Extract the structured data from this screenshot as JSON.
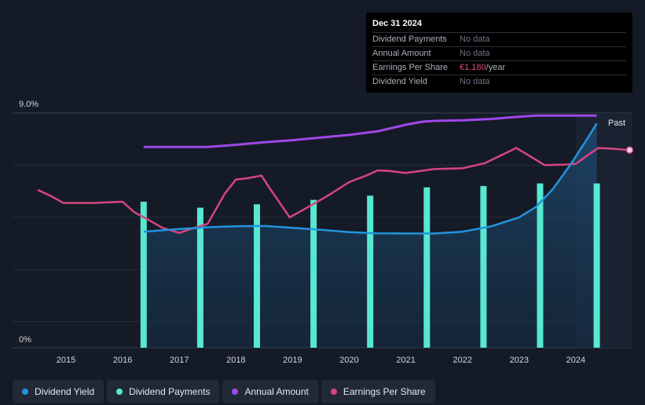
{
  "chart_data": {
    "type": "line",
    "ylabel_top": "9.0%",
    "ylabel_bottom": "0%",
    "ylim": [
      0,
      9.0
    ],
    "xlim": [
      2014.5,
      2025.0
    ],
    "x_ticks": [
      "2015",
      "2016",
      "2017",
      "2018",
      "2019",
      "2020",
      "2021",
      "2022",
      "2023",
      "2024"
    ],
    "past_label": "Past",
    "forecast_start": 2024.0,
    "series": [
      {
        "name": "Dividend Yield",
        "color": "#2394df",
        "points": [
          [
            2016.37,
            4.45
          ],
          [
            2017.0,
            4.55
          ],
          [
            2017.5,
            4.62
          ],
          [
            2018.0,
            4.66
          ],
          [
            2018.5,
            4.67
          ],
          [
            2019.0,
            4.6
          ],
          [
            2019.5,
            4.52
          ],
          [
            2020.0,
            4.43
          ],
          [
            2020.5,
            4.39
          ],
          [
            2021.0,
            4.38
          ],
          [
            2021.5,
            4.38
          ],
          [
            2022.0,
            4.45
          ],
          [
            2022.5,
            4.65
          ],
          [
            2023.0,
            5.0
          ],
          [
            2023.3,
            5.4
          ],
          [
            2023.6,
            6.1
          ],
          [
            2023.9,
            7.0
          ],
          [
            2024.2,
            8.0
          ],
          [
            2024.37,
            8.6
          ]
        ]
      },
      {
        "name": "Dividend Payments",
        "color": "#58e8d2",
        "type": "bar",
        "x": [
          2016.37,
          2017.37,
          2018.37,
          2019.37,
          2020.37,
          2021.37,
          2022.37,
          2023.37,
          2024.37
        ],
        "values": [
          5.6,
          5.37,
          5.5,
          5.67,
          5.83,
          6.15,
          6.2,
          6.3,
          6.3
        ]
      },
      {
        "name": "Annual Amount",
        "color": "#9f48e8",
        "points": [
          [
            2016.37,
            7.7
          ],
          [
            2017.0,
            7.7
          ],
          [
            2017.5,
            7.7
          ],
          [
            2018.0,
            7.78
          ],
          [
            2018.5,
            7.88
          ],
          [
            2019.0,
            7.96
          ],
          [
            2019.5,
            8.06
          ],
          [
            2020.0,
            8.16
          ],
          [
            2020.5,
            8.3
          ],
          [
            2021.0,
            8.55
          ],
          [
            2021.3,
            8.67
          ],
          [
            2021.5,
            8.7
          ],
          [
            2022.0,
            8.72
          ],
          [
            2022.5,
            8.77
          ],
          [
            2023.0,
            8.86
          ],
          [
            2023.3,
            8.9
          ],
          [
            2023.6,
            8.9
          ],
          [
            2024.37,
            8.9
          ]
        ]
      },
      {
        "name": "Earnings Per Share",
        "color": "#d64580",
        "points": [
          [
            2014.5,
            6.05
          ],
          [
            2014.75,
            5.8
          ],
          [
            2014.95,
            5.55
          ],
          [
            2015.5,
            5.55
          ],
          [
            2016.0,
            5.6
          ],
          [
            2016.2,
            5.2
          ],
          [
            2016.5,
            4.85
          ],
          [
            2016.7,
            4.6
          ],
          [
            2017.0,
            4.4
          ],
          [
            2017.2,
            4.55
          ],
          [
            2017.5,
            4.75
          ],
          [
            2017.8,
            5.9
          ],
          [
            2018.0,
            6.45
          ],
          [
            2018.2,
            6.5
          ],
          [
            2018.45,
            6.6
          ],
          [
            2018.6,
            6.1
          ],
          [
            2018.95,
            5.0
          ],
          [
            2019.2,
            5.3
          ],
          [
            2019.6,
            5.8
          ],
          [
            2020.0,
            6.35
          ],
          [
            2020.3,
            6.6
          ],
          [
            2020.5,
            6.8
          ],
          [
            2020.7,
            6.78
          ],
          [
            2021.0,
            6.7
          ],
          [
            2021.5,
            6.85
          ],
          [
            2022.0,
            6.88
          ],
          [
            2022.4,
            7.08
          ],
          [
            2022.7,
            7.4
          ],
          [
            2022.95,
            7.66
          ],
          [
            2023.15,
            7.4
          ],
          [
            2023.45,
            7.0
          ],
          [
            2023.8,
            7.02
          ],
          [
            2024.0,
            7.05
          ],
          [
            2024.2,
            7.37
          ],
          [
            2024.4,
            7.66
          ],
          [
            2024.65,
            7.63
          ],
          [
            2024.95,
            7.58
          ]
        ]
      }
    ]
  },
  "tooltip": {
    "date": "Dec 31 2024",
    "rows": [
      {
        "label": "Dividend Payments",
        "value": "No data"
      },
      {
        "label": "Annual Amount",
        "value": "No data"
      },
      {
        "label": "Earnings Per Share",
        "value": "€1.180",
        "unit": "/year"
      },
      {
        "label": "Dividend Yield",
        "value": "No data"
      }
    ]
  },
  "legend": [
    {
      "label": "Dividend Yield",
      "color": "#2394df"
    },
    {
      "label": "Dividend Payments",
      "color": "#58e8d2"
    },
    {
      "label": "Annual Amount",
      "color": "#9f48e8"
    },
    {
      "label": "Earnings Per Share",
      "color": "#d64580"
    }
  ]
}
